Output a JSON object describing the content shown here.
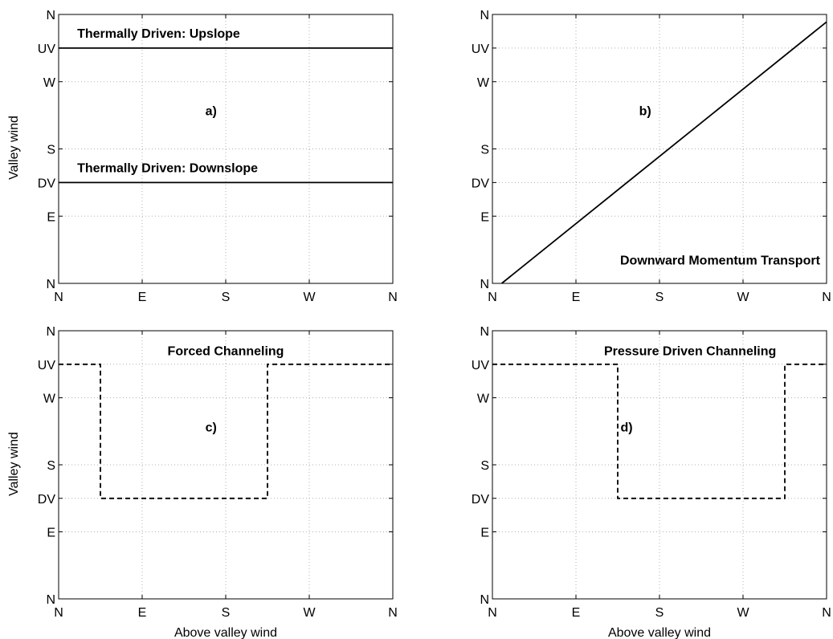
{
  "figure": {
    "xlabel": "Above valley wind",
    "ylabel": "Valley wind"
  },
  "colors": {
    "line": "#000000",
    "grid": "#b0b0b0"
  },
  "chart_data": [
    {
      "type": "line",
      "panel_label": "a)",
      "xlabel": "",
      "ylabel": "Valley wind",
      "x_ticks": [
        "N",
        "E",
        "S",
        "W",
        "N"
      ],
      "y_ticks": [
        "N",
        "E",
        "DV",
        "S",
        "W",
        "UV",
        "N"
      ],
      "x_tick_values": [
        0,
        90,
        180,
        270,
        360
      ],
      "y_tick_values": [
        0,
        90,
        135,
        180,
        270,
        315,
        360
      ],
      "xlim": [
        0,
        360
      ],
      "ylim": [
        0,
        360
      ],
      "grid": true,
      "series": [
        {
          "x": [
            0,
            360
          ],
          "y": [
            315,
            315
          ],
          "style": "solid"
        },
        {
          "x": [
            0,
            360
          ],
          "y": [
            135,
            135
          ],
          "style": "solid"
        }
      ],
      "annotations": [
        {
          "text": "Thermally Driven: Upslope",
          "x": 20,
          "y": 329,
          "anchor": "start"
        },
        {
          "text": "Thermally Driven: Downslope",
          "x": 20,
          "y": 149,
          "anchor": "start"
        },
        {
          "text": "a)",
          "x": 158,
          "y": 225,
          "anchor": "start"
        }
      ]
    },
    {
      "type": "line",
      "panel_label": "b)",
      "xlabel": "",
      "ylabel": "",
      "x_ticks": [
        "N",
        "E",
        "S",
        "W",
        "N"
      ],
      "y_ticks": [
        "N",
        "E",
        "DV",
        "S",
        "W",
        "UV",
        "N"
      ],
      "x_tick_values": [
        0,
        90,
        180,
        270,
        360
      ],
      "y_tick_values": [
        0,
        90,
        135,
        180,
        270,
        315,
        360
      ],
      "xlim": [
        0,
        360
      ],
      "ylim": [
        0,
        360
      ],
      "grid": true,
      "series": [
        {
          "x": [
            10,
            360
          ],
          "y": [
            0,
            350
          ],
          "style": "solid"
        }
      ],
      "annotations": [
        {
          "text": "Downward Momentum Transport",
          "x": 353,
          "y": 25,
          "anchor": "end"
        },
        {
          "text": "b)",
          "x": 158,
          "y": 225,
          "anchor": "start"
        }
      ]
    },
    {
      "type": "line",
      "panel_label": "c)",
      "xlabel": "Above valley wind",
      "ylabel": "Valley wind",
      "x_ticks": [
        "N",
        "E",
        "S",
        "W",
        "N"
      ],
      "y_ticks": [
        "N",
        "E",
        "DV",
        "S",
        "W",
        "UV",
        "N"
      ],
      "x_tick_values": [
        0,
        90,
        180,
        270,
        360
      ],
      "y_tick_values": [
        0,
        90,
        135,
        180,
        270,
        315,
        360
      ],
      "xlim": [
        0,
        360
      ],
      "ylim": [
        0,
        360
      ],
      "grid": true,
      "series": [
        {
          "x": [
            0,
            45,
            45,
            225,
            225,
            360
          ],
          "y": [
            315,
            315,
            135,
            135,
            315,
            315
          ],
          "style": "dashed"
        }
      ],
      "annotations": [
        {
          "text": "Forced Channeling",
          "x": 180,
          "y": 327,
          "anchor": "middle"
        },
        {
          "text": "c)",
          "x": 158,
          "y": 225,
          "anchor": "start"
        }
      ]
    },
    {
      "type": "line",
      "panel_label": "d)",
      "xlabel": "Above valley wind",
      "ylabel": "",
      "x_ticks": [
        "N",
        "E",
        "S",
        "W",
        "N"
      ],
      "y_ticks": [
        "N",
        "E",
        "DV",
        "S",
        "W",
        "UV",
        "N"
      ],
      "x_tick_values": [
        0,
        90,
        180,
        270,
        360
      ],
      "y_tick_values": [
        0,
        90,
        135,
        180,
        270,
        315,
        360
      ],
      "xlim": [
        0,
        360
      ],
      "ylim": [
        0,
        360
      ],
      "grid": true,
      "series": [
        {
          "x": [
            0,
            135,
            135,
            315,
            315,
            360
          ],
          "y": [
            315,
            315,
            135,
            135,
            315,
            315
          ],
          "style": "dashed"
        }
      ],
      "annotations": [
        {
          "text": "Pressure Driven Channeling",
          "x": 213,
          "y": 327,
          "anchor": "middle"
        },
        {
          "text": "d)",
          "x": 138,
          "y": 225,
          "anchor": "start"
        }
      ]
    }
  ]
}
